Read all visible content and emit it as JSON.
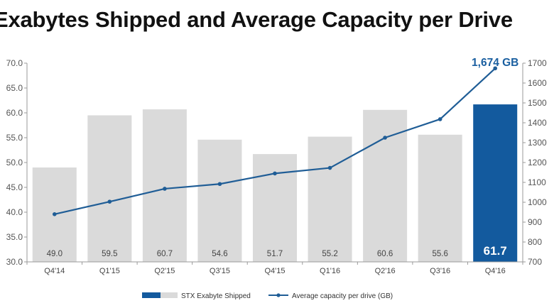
{
  "chart_data": {
    "type": "bar",
    "title": "Exabytes Shipped and Average Capacity per Drive",
    "categories": [
      "Q4'14",
      "Q1'15",
      "Q2'15",
      "Q3'15",
      "Q4'15",
      "Q1'16",
      "Q2'16",
      "Q3'16",
      "Q4'16"
    ],
    "series": [
      {
        "name": "STX Exabyte Shipped",
        "type": "bar",
        "axis": "left",
        "values": [
          49.0,
          59.5,
          60.7,
          54.6,
          51.7,
          55.2,
          60.6,
          55.6,
          61.7
        ],
        "value_labels": [
          "49.0",
          "59.5",
          "60.7",
          "54.6",
          "51.7",
          "55.2",
          "60.6",
          "55.6",
          "61.7"
        ],
        "highlight_index": 8
      },
      {
        "name": "Average capacity per drive (GB)",
        "type": "line",
        "axis": "right",
        "values": [
          940,
          1003,
          1068,
          1092,
          1145,
          1173,
          1325,
          1418,
          1674
        ]
      }
    ],
    "y_left": {
      "ylim": [
        30.0,
        70.0
      ],
      "ticks": [
        "30.0",
        "35.0",
        "40.0",
        "45.0",
        "50.0",
        "55.0",
        "60.0",
        "65.0",
        "70.0"
      ]
    },
    "y_right": {
      "ylim": [
        700,
        1700
      ],
      "ticks": [
        "700",
        "800",
        "900",
        "1000",
        "1100",
        "1200",
        "1300",
        "1400",
        "1500",
        "1600",
        "1700"
      ]
    },
    "annotation": "1,674 GB",
    "grid": false,
    "legend_position": "bottom",
    "colors": {
      "bar": "#dadada",
      "highlight_bar": "#135a9e",
      "line": "#1f5d96",
      "annotation": "#1a5fa0"
    }
  }
}
